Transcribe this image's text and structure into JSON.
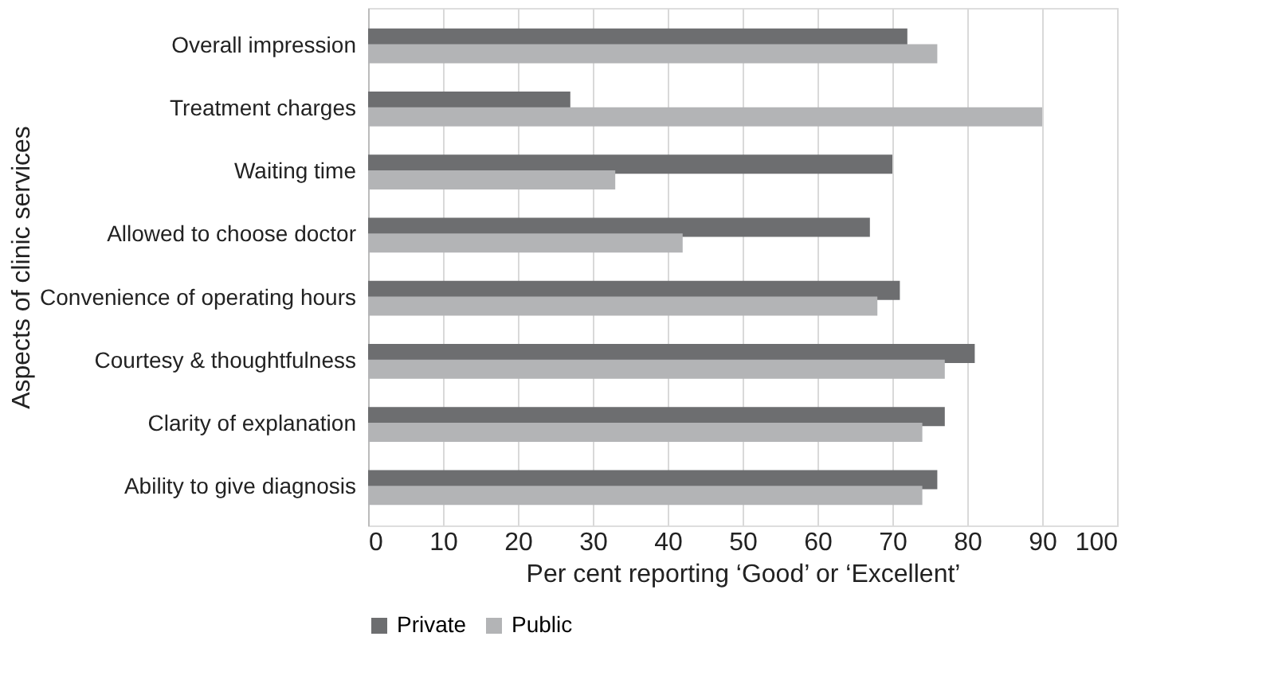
{
  "chart_data": {
    "type": "bar",
    "orientation": "horizontal",
    "categories": [
      "Overall impression",
      "Treatment charges",
      "Waiting time",
      "Allowed to choose doctor",
      "Convenience of operating hours",
      "Courtesy & thoughtfulness",
      "Clarity of explanation",
      "Ability to give diagnosis"
    ],
    "series": [
      {
        "name": "Private",
        "color": "#6d6e70",
        "values": [
          72,
          27,
          70,
          67,
          71,
          81,
          77,
          76
        ]
      },
      {
        "name": "Public",
        "color": "#b3b4b6",
        "values": [
          76,
          90,
          33,
          42,
          68,
          77,
          74,
          74
        ]
      }
    ],
    "xlabel": "Per cent reporting ‘Good’ or ‘Excellent’",
    "ylabel": "Aspects of clinic services",
    "xlim": [
      0,
      100
    ],
    "xticks": [
      0,
      10,
      20,
      30,
      40,
      50,
      60,
      70,
      80,
      90,
      100
    ],
    "grid": "x",
    "legend": "bottom"
  }
}
